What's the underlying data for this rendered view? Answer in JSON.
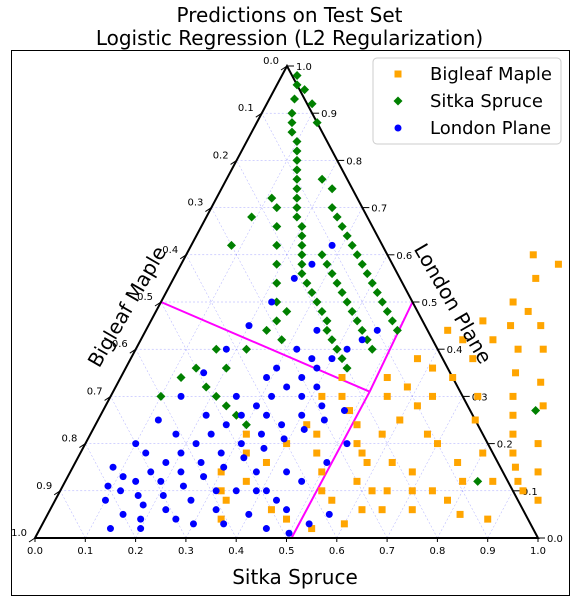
{
  "chart_data": {
    "type": "scatter",
    "subtype": "ternary",
    "title": "Predictions on Test Set",
    "subtitle": "Logistic Regression (L2 Regularization)",
    "axes": {
      "bottom": {
        "label": "Sitka Spruce",
        "range": [
          0,
          1
        ]
      },
      "left": {
        "label": "Bigleaf Maple",
        "range": [
          0,
          1
        ]
      },
      "right": {
        "label": "London Plane",
        "range": [
          0,
          1
        ]
      }
    },
    "ticks": {
      "bottom": [
        "0.0",
        "0.1",
        "0.2",
        "0.3",
        "0.4",
        "0.5",
        "0.6",
        "0.7",
        "0.8",
        "0.9",
        "1.0"
      ],
      "left": [
        "0.0",
        "0.1",
        "0.2",
        "0.3",
        "0.4",
        "0.5",
        "0.6",
        "0.7",
        "0.8",
        "0.9",
        "1.0"
      ],
      "right": [
        "0.0",
        "0.1",
        "0.2",
        "0.3",
        "0.4",
        "0.5",
        "0.6",
        "0.7",
        "0.8",
        "0.9",
        "1.0"
      ]
    },
    "grid": true,
    "legend_position": "top-right",
    "decision_boundary": {
      "center": {
        "sitka": 0.51,
        "london": 0.31
      },
      "ends": [
        {
          "sitka": 0.0,
          "london": 0.5
        },
        {
          "sitka": 0.5,
          "london": 0.5
        },
        {
          "sitka": 0.51,
          "london": 0.0
        }
      ],
      "color": "#ff00ff"
    },
    "series": [
      {
        "name": "Bigleaf Maple",
        "marker": "square",
        "color": "#ffa500",
        "points": [
          [
            0.49,
            0.27
          ],
          [
            0.52,
            0.24
          ],
          [
            0.54,
            0.2
          ],
          [
            0.56,
            0.18
          ],
          [
            0.58,
            0.22
          ],
          [
            0.6,
            0.25
          ],
          [
            0.62,
            0.28
          ],
          [
            0.64,
            0.3
          ],
          [
            0.66,
            0.34
          ],
          [
            0.68,
            0.38
          ],
          [
            0.7,
            0.42
          ],
          [
            0.72,
            0.45
          ],
          [
            0.74,
            0.48
          ],
          [
            0.76,
            0.4
          ],
          [
            0.78,
            0.35
          ],
          [
            0.8,
            0.3
          ],
          [
            0.82,
            0.26
          ],
          [
            0.84,
            0.22
          ],
          [
            0.86,
            0.18
          ],
          [
            0.88,
            0.15
          ],
          [
            0.9,
            0.12
          ],
          [
            0.92,
            0.1
          ],
          [
            0.75,
            0.25
          ],
          [
            0.7,
            0.2
          ],
          [
            0.68,
            0.14
          ],
          [
            0.65,
            0.1
          ],
          [
            0.62,
            0.06
          ],
          [
            0.6,
            0.03
          ],
          [
            0.72,
            0.06
          ],
          [
            0.78,
            0.08
          ],
          [
            0.82,
            0.05
          ],
          [
            0.88,
            0.04
          ],
          [
            0.76,
            0.16
          ],
          [
            0.8,
            0.18
          ],
          [
            0.73,
            0.3
          ],
          [
            0.67,
            0.22
          ],
          [
            0.63,
            0.16
          ],
          [
            0.58,
            0.12
          ],
          [
            0.55,
            0.08
          ],
          [
            0.52,
            0.1
          ],
          [
            0.5,
            0.14
          ],
          [
            0.47,
            0.18
          ],
          [
            0.45,
            0.22
          ],
          [
            0.42,
            0.24
          ],
          [
            0.4,
            0.2
          ],
          [
            0.38,
            0.16
          ],
          [
            0.36,
            0.12
          ],
          [
            0.34,
            0.08
          ],
          [
            0.33,
            0.18
          ],
          [
            0.31,
            0.22
          ],
          [
            0.3,
            0.14
          ],
          [
            0.32,
            0.1
          ],
          [
            0.35,
            0.04
          ],
          [
            0.44,
            0.06
          ],
          [
            0.48,
            0.04
          ],
          [
            0.54,
            0.02
          ],
          [
            0.58,
            0.32
          ],
          [
            0.61,
            0.36
          ],
          [
            0.64,
            0.42
          ],
          [
            0.66,
            0.46
          ],
          [
            0.7,
            0.5
          ],
          [
            0.72,
            0.55
          ],
          [
            0.75,
            0.58
          ],
          [
            0.69,
            0.6
          ],
          [
            0.78,
            0.45
          ],
          [
            0.81,
            0.4
          ],
          [
            0.84,
            0.33
          ],
          [
            0.87,
            0.28
          ],
          [
            0.9,
            0.2
          ],
          [
            0.93,
            0.14
          ],
          [
            0.96,
            0.08
          ],
          [
            0.55,
            0.3
          ],
          [
            0.53,
            0.34
          ],
          [
            0.57,
            0.38
          ],
          [
            0.6,
            0.44
          ],
          [
            0.44,
            0.34
          ],
          [
            0.46,
            0.3
          ],
          [
            0.42,
            0.3
          ],
          [
            0.85,
            0.12
          ],
          [
            0.79,
            0.12
          ],
          [
            0.74,
            0.1
          ],
          [
            0.7,
            0.1
          ],
          [
            0.66,
            0.06
          ],
          [
            0.62,
            0.1
          ],
          [
            0.58,
            0.16
          ]
        ]
      },
      {
        "name": "Sitka Spruce",
        "marker": "diamond",
        "color": "#008000",
        "points": [
          [
            0.04,
            0.96
          ],
          [
            0.05,
            0.93
          ],
          [
            0.06,
            0.9
          ],
          [
            0.07,
            0.88
          ],
          [
            0.08,
            0.86
          ],
          [
            0.1,
            0.84
          ],
          [
            0.11,
            0.82
          ],
          [
            0.12,
            0.8
          ],
          [
            0.13,
            0.78
          ],
          [
            0.14,
            0.76
          ],
          [
            0.15,
            0.74
          ],
          [
            0.16,
            0.72
          ],
          [
            0.17,
            0.7
          ],
          [
            0.18,
            0.68
          ],
          [
            0.2,
            0.66
          ],
          [
            0.21,
            0.64
          ],
          [
            0.22,
            0.62
          ],
          [
            0.23,
            0.6
          ],
          [
            0.24,
            0.58
          ],
          [
            0.25,
            0.56
          ],
          [
            0.27,
            0.54
          ],
          [
            0.29,
            0.52
          ],
          [
            0.31,
            0.5
          ],
          [
            0.33,
            0.48
          ],
          [
            0.35,
            0.46
          ],
          [
            0.36,
            0.44
          ],
          [
            0.38,
            0.42
          ],
          [
            0.4,
            0.4
          ],
          [
            0.42,
            0.38
          ],
          [
            0.44,
            0.36
          ],
          [
            0.19,
            0.76
          ],
          [
            0.22,
            0.74
          ],
          [
            0.24,
            0.7
          ],
          [
            0.26,
            0.68
          ],
          [
            0.28,
            0.66
          ],
          [
            0.3,
            0.64
          ],
          [
            0.32,
            0.62
          ],
          [
            0.34,
            0.6
          ],
          [
            0.36,
            0.58
          ],
          [
            0.38,
            0.56
          ],
          [
            0.4,
            0.54
          ],
          [
            0.42,
            0.52
          ],
          [
            0.44,
            0.5
          ],
          [
            0.46,
            0.48
          ],
          [
            0.48,
            0.46
          ],
          [
            0.5,
            0.44
          ],
          [
            0.27,
            0.6
          ],
          [
            0.29,
            0.58
          ],
          [
            0.31,
            0.56
          ],
          [
            0.33,
            0.54
          ],
          [
            0.35,
            0.52
          ],
          [
            0.37,
            0.5
          ],
          [
            0.39,
            0.48
          ],
          [
            0.41,
            0.46
          ],
          [
            0.43,
            0.44
          ],
          [
            0.45,
            0.42
          ],
          [
            0.47,
            0.4
          ],
          [
            0.26,
            0.48
          ],
          [
            0.24,
            0.44
          ],
          [
            0.22,
            0.4
          ],
          [
            0.2,
            0.36
          ],
          [
            0.18,
            0.32
          ],
          [
            0.21,
            0.3
          ],
          [
            0.24,
            0.28
          ],
          [
            0.27,
            0.26
          ],
          [
            0.3,
            0.24
          ],
          [
            0.16,
            0.4
          ],
          [
            0.14,
            0.36
          ],
          [
            0.12,
            0.34
          ],
          [
            0.1,
            0.3
          ],
          [
            0.08,
            0.62
          ],
          [
            0.09,
            0.68
          ],
          [
            0.11,
            0.72
          ],
          [
            0.13,
            0.7
          ],
          [
            0.15,
            0.66
          ],
          [
            0.17,
            0.62
          ],
          [
            0.19,
            0.58
          ],
          [
            0.21,
            0.54
          ],
          [
            0.23,
            0.5
          ],
          [
            0.25,
            0.46
          ],
          [
            0.28,
            0.42
          ],
          [
            0.03,
            0.98
          ],
          [
            0.06,
            0.95
          ],
          [
            0.09,
            0.92
          ],
          [
            0.12,
            0.88
          ],
          [
            0.86,
            0.27
          ],
          [
            0.82,
            0.12
          ]
        ]
      },
      {
        "name": "London Plane",
        "marker": "circle",
        "color": "#0000ff",
        "points": [
          [
            0.14,
            0.02
          ],
          [
            0.2,
            0.02
          ],
          [
            0.26,
            0.04
          ],
          [
            0.3,
            0.03
          ],
          [
            0.33,
            0.06
          ],
          [
            0.36,
            0.03
          ],
          [
            0.4,
            0.05
          ],
          [
            0.45,
            0.02
          ],
          [
            0.5,
            0.01
          ],
          [
            0.53,
            0.03
          ],
          [
            0.56,
            0.05
          ],
          [
            0.1,
            0.08
          ],
          [
            0.12,
            0.1
          ],
          [
            0.14,
            0.12
          ],
          [
            0.16,
            0.14
          ],
          [
            0.18,
            0.16
          ],
          [
            0.2,
            0.18
          ],
          [
            0.22,
            0.2
          ],
          [
            0.24,
            0.22
          ],
          [
            0.26,
            0.24
          ],
          [
            0.28,
            0.26
          ],
          [
            0.3,
            0.28
          ],
          [
            0.32,
            0.3
          ],
          [
            0.34,
            0.32
          ],
          [
            0.36,
            0.34
          ],
          [
            0.38,
            0.36
          ],
          [
            0.4,
            0.38
          ],
          [
            0.42,
            0.4
          ],
          [
            0.44,
            0.42
          ],
          [
            0.46,
            0.44
          ],
          [
            0.15,
            0.05
          ],
          [
            0.18,
            0.07
          ],
          [
            0.21,
            0.09
          ],
          [
            0.24,
            0.11
          ],
          [
            0.27,
            0.13
          ],
          [
            0.3,
            0.15
          ],
          [
            0.33,
            0.17
          ],
          [
            0.36,
            0.19
          ],
          [
            0.39,
            0.21
          ],
          [
            0.42,
            0.23
          ],
          [
            0.45,
            0.25
          ],
          [
            0.48,
            0.27
          ],
          [
            0.19,
            0.12
          ],
          [
            0.22,
            0.14
          ],
          [
            0.25,
            0.16
          ],
          [
            0.28,
            0.18
          ],
          [
            0.31,
            0.2
          ],
          [
            0.34,
            0.22
          ],
          [
            0.37,
            0.24
          ],
          [
            0.4,
            0.26
          ],
          [
            0.43,
            0.28
          ],
          [
            0.08,
            0.15
          ],
          [
            0.1,
            0.2
          ],
          [
            0.12,
            0.25
          ],
          [
            0.14,
            0.3
          ],
          [
            0.16,
            0.35
          ],
          [
            0.18,
            0.4
          ],
          [
            0.2,
            0.45
          ],
          [
            0.22,
            0.5
          ],
          [
            0.24,
            0.55
          ],
          [
            0.26,
            0.58
          ],
          [
            0.28,
            0.62
          ],
          [
            0.3,
            0.36
          ],
          [
            0.32,
            0.4
          ],
          [
            0.34,
            0.44
          ],
          [
            0.36,
            0.38
          ],
          [
            0.38,
            0.3
          ],
          [
            0.4,
            0.32
          ],
          [
            0.13,
            0.18
          ],
          [
            0.17,
            0.22
          ],
          [
            0.21,
            0.26
          ],
          [
            0.25,
            0.3
          ],
          [
            0.29,
            0.34
          ],
          [
            0.33,
            0.26
          ],
          [
            0.37,
            0.14
          ],
          [
            0.41,
            0.1
          ],
          [
            0.44,
            0.08
          ],
          [
            0.47,
            0.12
          ],
          [
            0.5,
            0.16
          ],
          [
            0.52,
            0.2
          ],
          [
            0.47,
            0.06
          ],
          [
            0.43,
            0.14
          ],
          [
            0.39,
            0.1
          ],
          [
            0.35,
            0.1
          ],
          [
            0.31,
            0.1
          ],
          [
            0.27,
            0.08
          ],
          [
            0.23,
            0.06
          ],
          [
            0.19,
            0.04
          ],
          [
            0.16,
            0.09
          ],
          [
            0.11,
            0.13
          ],
          [
            0.09,
            0.11
          ]
        ]
      }
    ]
  }
}
